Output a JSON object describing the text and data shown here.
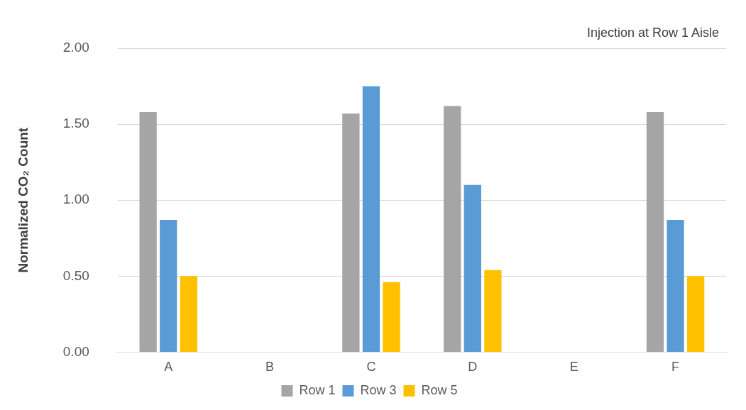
{
  "chart_data": {
    "type": "bar",
    "annotations": [
      "Injection at Row 1 Aisle"
    ],
    "ylabel": "Normalized CO₂ Count",
    "categories": [
      "A",
      "B",
      "C",
      "D",
      "E",
      "F"
    ],
    "series": [
      {
        "name": "Row 1",
        "color": "#a5a5a5",
        "values": [
          1.58,
          null,
          1.57,
          1.62,
          null,
          1.58
        ]
      },
      {
        "name": "Row 3",
        "color": "#5b9bd5",
        "values": [
          0.87,
          null,
          1.75,
          1.1,
          null,
          0.87
        ]
      },
      {
        "name": "Row 5",
        "color": "#ffc000",
        "values": [
          0.5,
          null,
          0.46,
          0.54,
          null,
          0.5
        ]
      }
    ],
    "ylim": [
      0,
      2
    ],
    "yticks": [
      {
        "value": 0,
        "label": "0.00"
      },
      {
        "value": 0.5,
        "label": "0.50"
      },
      {
        "value": 1,
        "label": "1.00"
      },
      {
        "value": 1.5,
        "label": "1.50"
      },
      {
        "value": 2,
        "label": "2.00"
      }
    ],
    "grid": "y",
    "legend": "bottom"
  }
}
